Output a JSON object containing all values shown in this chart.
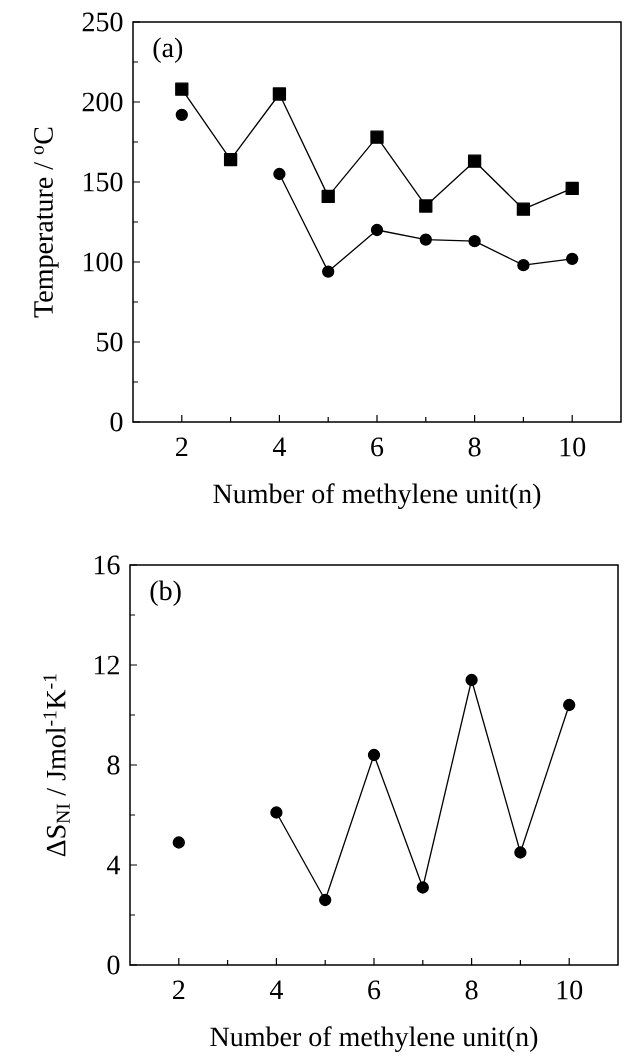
{
  "chart_data": [
    {
      "type": "line",
      "xlabel": "Number of methylene unit(n)",
      "ylabel": "Temperature / $^{o}$C",
      "annotations": [
        "(a)"
      ],
      "x": [
        2,
        3,
        4,
        5,
        6,
        7,
        8,
        9,
        10
      ],
      "xlim": [
        1,
        11
      ],
      "xticks": [
        2,
        4,
        6,
        8,
        10
      ],
      "ylim": [
        0,
        250
      ],
      "yticks": [
        0,
        50,
        100,
        150,
        200,
        250
      ],
      "series": [
        {
          "color": "#000000",
          "marker": "square",
          "values": [
            208,
            164,
            205,
            141,
            178,
            135,
            163,
            133,
            146
          ]
        },
        {
          "color": "#000000",
          "marker": "circle",
          "values": [
            192,
            null,
            155,
            94,
            120,
            114,
            113,
            98,
            102
          ]
        }
      ],
      "line_style": "solid"
    },
    {
      "type": "line",
      "xlabel": "Number of methylene unit(n)",
      "ylabel": "ΔS$_{NI}$ / Jmol$^{-1}$K$^{-1}$",
      "annotations": [
        "(b)"
      ],
      "x": [
        2,
        3,
        4,
        5,
        6,
        7,
        8,
        9,
        10
      ],
      "xlim": [
        1,
        11
      ],
      "xticks": [
        2,
        4,
        6,
        8,
        10
      ],
      "ylim": [
        0,
        16
      ],
      "yticks": [
        0,
        4,
        8,
        12,
        16
      ],
      "series": [
        {
          "color": "#000000",
          "marker": "circle",
          "values": [
            4.9,
            null,
            6.1,
            2.6,
            8.4,
            3.1,
            11.4,
            4.5,
            10.4
          ]
        }
      ],
      "line_style": "solid"
    }
  ]
}
